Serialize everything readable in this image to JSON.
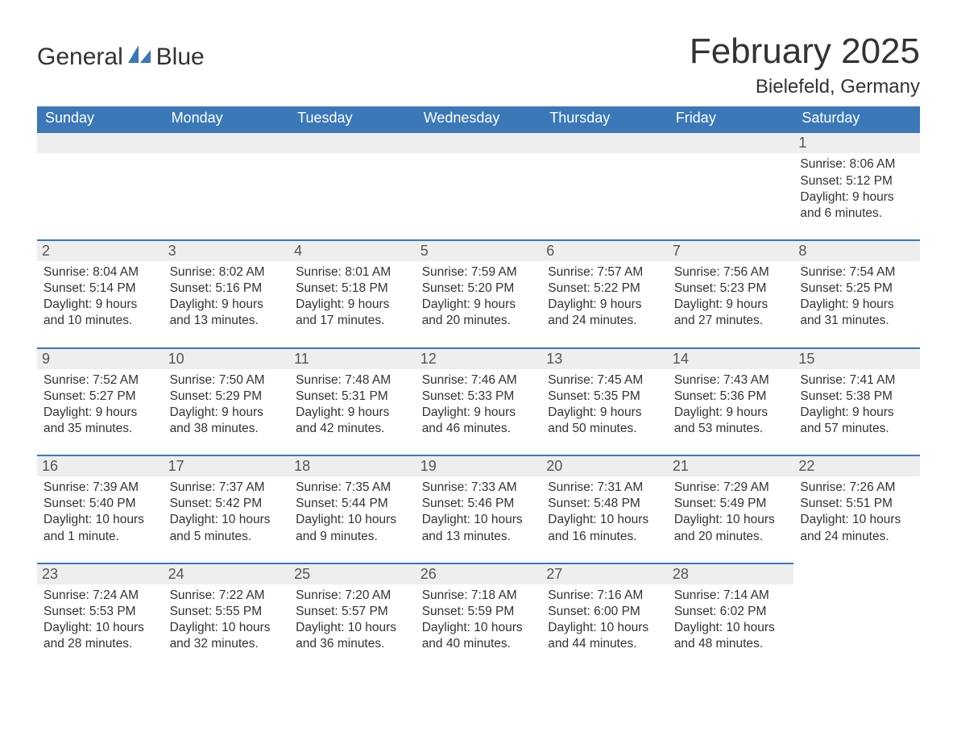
{
  "brand": {
    "word1": "General",
    "word2": "Blue",
    "accent_color": "#3a78b8"
  },
  "title": "February 2025",
  "location": "Bielefeld, Germany",
  "colors": {
    "header_bg": "#3a78b8",
    "header_text": "#ffffff",
    "strip_bg": "#eeeeee",
    "strip_border": "#3a78b8",
    "body_text": "#333333",
    "daynum_text": "#555555",
    "page_bg": "#ffffff"
  },
  "font": {
    "family": "Helvetica Neue",
    "title_size_pt": 44,
    "location_size_pt": 24,
    "dayhead_size_pt": 18,
    "body_size_pt": 15.5
  },
  "day_headers": [
    "Sunday",
    "Monday",
    "Tuesday",
    "Wednesday",
    "Thursday",
    "Friday",
    "Saturday"
  ],
  "weeks": [
    [
      null,
      null,
      null,
      null,
      null,
      null,
      {
        "n": "1",
        "sunrise": "Sunrise: 8:06 AM",
        "sunset": "Sunset: 5:12 PM",
        "daylight": "Daylight: 9 hours and 6 minutes."
      }
    ],
    [
      {
        "n": "2",
        "sunrise": "Sunrise: 8:04 AM",
        "sunset": "Sunset: 5:14 PM",
        "daylight": "Daylight: 9 hours and 10 minutes."
      },
      {
        "n": "3",
        "sunrise": "Sunrise: 8:02 AM",
        "sunset": "Sunset: 5:16 PM",
        "daylight": "Daylight: 9 hours and 13 minutes."
      },
      {
        "n": "4",
        "sunrise": "Sunrise: 8:01 AM",
        "sunset": "Sunset: 5:18 PM",
        "daylight": "Daylight: 9 hours and 17 minutes."
      },
      {
        "n": "5",
        "sunrise": "Sunrise: 7:59 AM",
        "sunset": "Sunset: 5:20 PM",
        "daylight": "Daylight: 9 hours and 20 minutes."
      },
      {
        "n": "6",
        "sunrise": "Sunrise: 7:57 AM",
        "sunset": "Sunset: 5:22 PM",
        "daylight": "Daylight: 9 hours and 24 minutes."
      },
      {
        "n": "7",
        "sunrise": "Sunrise: 7:56 AM",
        "sunset": "Sunset: 5:23 PM",
        "daylight": "Daylight: 9 hours and 27 minutes."
      },
      {
        "n": "8",
        "sunrise": "Sunrise: 7:54 AM",
        "sunset": "Sunset: 5:25 PM",
        "daylight": "Daylight: 9 hours and 31 minutes."
      }
    ],
    [
      {
        "n": "9",
        "sunrise": "Sunrise: 7:52 AM",
        "sunset": "Sunset: 5:27 PM",
        "daylight": "Daylight: 9 hours and 35 minutes."
      },
      {
        "n": "10",
        "sunrise": "Sunrise: 7:50 AM",
        "sunset": "Sunset: 5:29 PM",
        "daylight": "Daylight: 9 hours and 38 minutes."
      },
      {
        "n": "11",
        "sunrise": "Sunrise: 7:48 AM",
        "sunset": "Sunset: 5:31 PM",
        "daylight": "Daylight: 9 hours and 42 minutes."
      },
      {
        "n": "12",
        "sunrise": "Sunrise: 7:46 AM",
        "sunset": "Sunset: 5:33 PM",
        "daylight": "Daylight: 9 hours and 46 minutes."
      },
      {
        "n": "13",
        "sunrise": "Sunrise: 7:45 AM",
        "sunset": "Sunset: 5:35 PM",
        "daylight": "Daylight: 9 hours and 50 minutes."
      },
      {
        "n": "14",
        "sunrise": "Sunrise: 7:43 AM",
        "sunset": "Sunset: 5:36 PM",
        "daylight": "Daylight: 9 hours and 53 minutes."
      },
      {
        "n": "15",
        "sunrise": "Sunrise: 7:41 AM",
        "sunset": "Sunset: 5:38 PM",
        "daylight": "Daylight: 9 hours and 57 minutes."
      }
    ],
    [
      {
        "n": "16",
        "sunrise": "Sunrise: 7:39 AM",
        "sunset": "Sunset: 5:40 PM",
        "daylight": "Daylight: 10 hours and 1 minute."
      },
      {
        "n": "17",
        "sunrise": "Sunrise: 7:37 AM",
        "sunset": "Sunset: 5:42 PM",
        "daylight": "Daylight: 10 hours and 5 minutes."
      },
      {
        "n": "18",
        "sunrise": "Sunrise: 7:35 AM",
        "sunset": "Sunset: 5:44 PM",
        "daylight": "Daylight: 10 hours and 9 minutes."
      },
      {
        "n": "19",
        "sunrise": "Sunrise: 7:33 AM",
        "sunset": "Sunset: 5:46 PM",
        "daylight": "Daylight: 10 hours and 13 minutes."
      },
      {
        "n": "20",
        "sunrise": "Sunrise: 7:31 AM",
        "sunset": "Sunset: 5:48 PM",
        "daylight": "Daylight: 10 hours and 16 minutes."
      },
      {
        "n": "21",
        "sunrise": "Sunrise: 7:29 AM",
        "sunset": "Sunset: 5:49 PM",
        "daylight": "Daylight: 10 hours and 20 minutes."
      },
      {
        "n": "22",
        "sunrise": "Sunrise: 7:26 AM",
        "sunset": "Sunset: 5:51 PM",
        "daylight": "Daylight: 10 hours and 24 minutes."
      }
    ],
    [
      {
        "n": "23",
        "sunrise": "Sunrise: 7:24 AM",
        "sunset": "Sunset: 5:53 PM",
        "daylight": "Daylight: 10 hours and 28 minutes."
      },
      {
        "n": "24",
        "sunrise": "Sunrise: 7:22 AM",
        "sunset": "Sunset: 5:55 PM",
        "daylight": "Daylight: 10 hours and 32 minutes."
      },
      {
        "n": "25",
        "sunrise": "Sunrise: 7:20 AM",
        "sunset": "Sunset: 5:57 PM",
        "daylight": "Daylight: 10 hours and 36 minutes."
      },
      {
        "n": "26",
        "sunrise": "Sunrise: 7:18 AM",
        "sunset": "Sunset: 5:59 PM",
        "daylight": "Daylight: 10 hours and 40 minutes."
      },
      {
        "n": "27",
        "sunrise": "Sunrise: 7:16 AM",
        "sunset": "Sunset: 6:00 PM",
        "daylight": "Daylight: 10 hours and 44 minutes."
      },
      {
        "n": "28",
        "sunrise": "Sunrise: 7:14 AM",
        "sunset": "Sunset: 6:02 PM",
        "daylight": "Daylight: 10 hours and 48 minutes."
      },
      null
    ]
  ]
}
